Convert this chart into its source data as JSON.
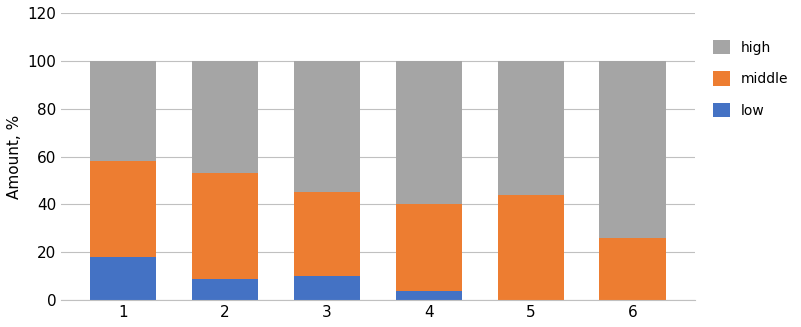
{
  "categories": [
    "1",
    "2",
    "3",
    "4",
    "5",
    "6"
  ],
  "low": [
    18,
    9,
    10,
    4,
    0,
    0
  ],
  "middle": [
    40,
    44,
    35,
    36,
    44,
    26
  ],
  "high": [
    42,
    47,
    55,
    60,
    56,
    74
  ],
  "low_color": "#4472c4",
  "middle_color": "#ed7d31",
  "high_color": "#a5a5a5",
  "ylabel": "Amount, %",
  "ylim": [
    0,
    120
  ],
  "yticks": [
    0,
    20,
    40,
    60,
    80,
    100,
    120
  ],
  "legend_labels": [
    "high",
    "middle",
    "low"
  ],
  "bar_width": 0.65,
  "gridline_color": "#c0c0c0",
  "background_color": "#ffffff"
}
